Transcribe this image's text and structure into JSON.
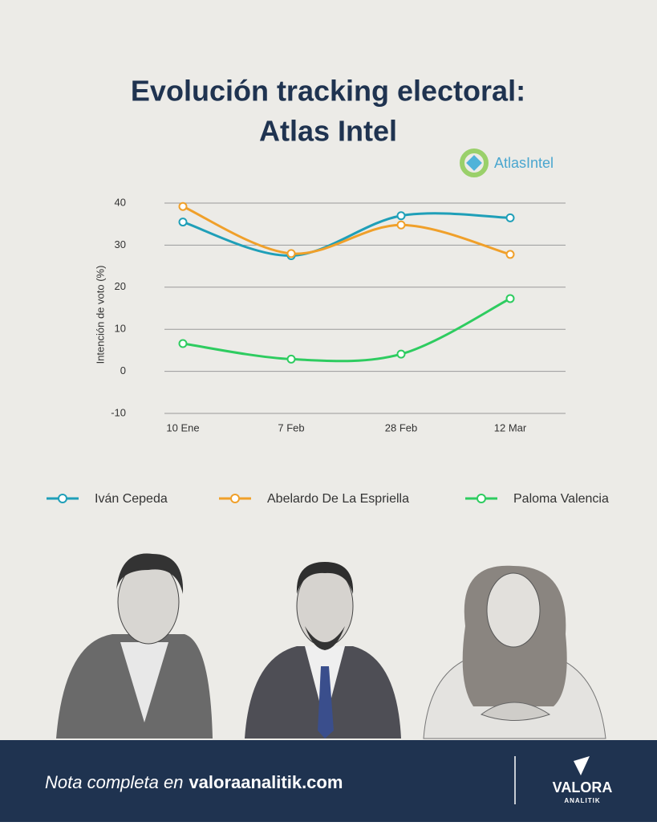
{
  "chart_data": {
    "type": "line",
    "title": "Evolución tracking electoral:",
    "subtitle": "Atlas Intel",
    "ylabel": "Intención de voto (%)",
    "categories": [
      "10 Ene",
      "7 Feb",
      "28 Feb",
      "12 Mar"
    ],
    "series": [
      {
        "name": "Iván Cepeda",
        "color": "#1f9fb8",
        "values": [
          35.5,
          27.5,
          37,
          36.5
        ]
      },
      {
        "name": "Abelardo De La Espriella",
        "color": "#f0a02a",
        "values": [
          39.2,
          28,
          34.8,
          27.8
        ]
      },
      {
        "name": "Paloma Valencia",
        "color": "#2ecc60",
        "values": [
          6.6,
          2.9,
          4.1,
          17.3
        ]
      }
    ],
    "ylim": [
      -10,
      40
    ],
    "yticks": [
      -10,
      0,
      10,
      20,
      30,
      40
    ],
    "grid": true,
    "smooth": true
  },
  "logo": "AtlasIntel",
  "footer": {
    "note": "Nota completa en",
    "site": "valoraanalitik.com",
    "brand": "VALORA",
    "brand_sub": "ANALITIK"
  }
}
